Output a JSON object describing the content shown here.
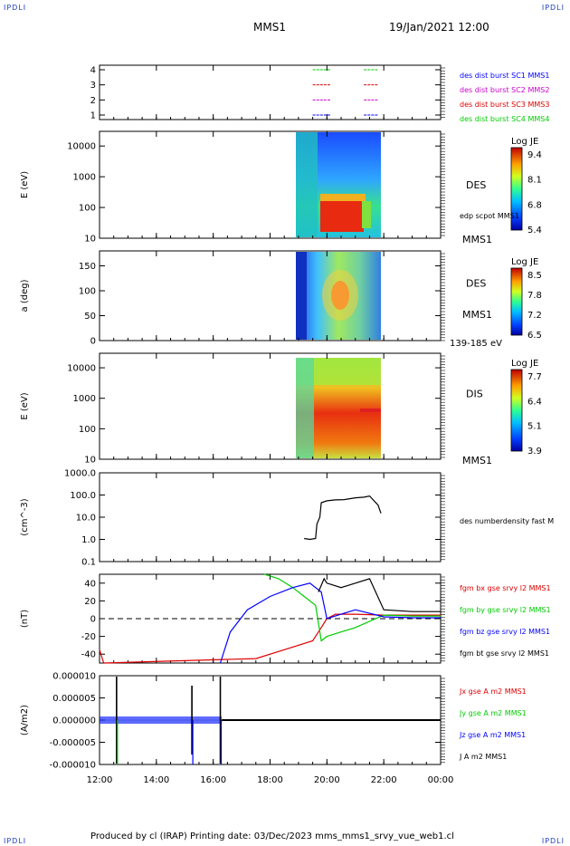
{
  "corner_tag": "IPDLI",
  "header": {
    "title": "MMS1",
    "date": "19/Jan/2021 12:00"
  },
  "footer": {
    "text": "Produced by cl (IRAP)    Printing date: 03/Dec/2023    mms_mms1_srvy_vue_web1.cl"
  },
  "colors": {
    "sc1": "#0000ff",
    "sc2": "#cc00cc",
    "sc3": "#dd0000",
    "sc4": "#00cc00",
    "black": "#000000"
  },
  "chart_data": {
    "type": "line",
    "x_axis": {
      "ticks": [
        "12:00",
        "14:00",
        "16:00",
        "18:00",
        "20:00",
        "22:00",
        "00:00"
      ],
      "range_hours": [
        12,
        24
      ]
    },
    "panels": [
      {
        "id": "coverage",
        "type": "scatter",
        "yticks": [
          "4",
          "3",
          "2",
          "1"
        ],
        "legend": [
          {
            "label": "des dist burst SC1 MMS1",
            "color": "#0000ff"
          },
          {
            "label": "des dist burst SC2 MMS2",
            "color": "#cc00cc"
          },
          {
            "label": "des dist burst SC3 MMS3",
            "color": "#dd0000"
          },
          {
            "label": "des dist burst SC4 MMS4",
            "color": "#00cc00"
          }
        ],
        "intervals_hours": [
          [
            19.5,
            20.1
          ],
          [
            21.3,
            21.8
          ]
        ]
      },
      {
        "id": "des_energy",
        "type": "heatmap",
        "ylabel": "E (eV)",
        "yticks": [
          "10000",
          "1000",
          "100",
          "10"
        ],
        "scale": "log",
        "ylim": [
          10,
          30000
        ],
        "data_interval_hours": [
          18.9,
          21.95
        ],
        "species": "DES",
        "sat": "MMS1",
        "overlay_label": "edp scpot MMS1",
        "colorbar": {
          "title": "Log JE",
          "ticks": [
            "9.4",
            "8.1",
            "6.8",
            "5.4"
          ]
        }
      },
      {
        "id": "des_pitch",
        "type": "heatmap",
        "ylabel": "a (deg)",
        "yticks": [
          "150",
          "100",
          "50",
          "0"
        ],
        "ylim": [
          0,
          180
        ],
        "data_interval_hours": [
          18.9,
          21.95
        ],
        "species": "DES",
        "sat": "MMS1",
        "energy_band": "139-185 eV",
        "colorbar": {
          "title": "Log JE",
          "ticks": [
            "8.5",
            "7.8",
            "7.2",
            "6.5"
          ]
        }
      },
      {
        "id": "dis_energy",
        "type": "heatmap",
        "ylabel": "E (eV)",
        "yticks": [
          "10000",
          "1000",
          "100",
          "10"
        ],
        "scale": "log",
        "ylim": [
          10,
          30000
        ],
        "data_interval_hours": [
          18.9,
          21.95
        ],
        "species": "DIS",
        "sat": "MMS1",
        "colorbar": {
          "title": "Log JE",
          "ticks": [
            "7.7",
            "6.4",
            "5.1",
            "3.9"
          ]
        }
      },
      {
        "id": "density",
        "type": "line",
        "ylabel": "(cm^-3)",
        "yticks": [
          "1000.0",
          "100.0",
          "10.0",
          "1.0",
          "0.1"
        ],
        "scale": "log",
        "ylim": [
          0.1,
          1000
        ],
        "series": [
          {
            "name": "des numberdensity fast M",
            "color": "#000000",
            "x": [
              19.2,
              19.4,
              19.6,
              19.65,
              19.75,
              19.8,
              20.0,
              20.3,
              20.6,
              21.0,
              21.3,
              21.5,
              21.8,
              21.9
            ],
            "y": [
              1.1,
              1.0,
              1.1,
              5,
              10,
              45,
              55,
              60,
              62,
              75,
              80,
              90,
              35,
              15
            ]
          }
        ]
      },
      {
        "id": "bfield",
        "type": "line",
        "ylabel": "(nT)",
        "yticks": [
          "40",
          "20",
          "0",
          "-20",
          "-40"
        ],
        "ylim": [
          -50,
          50
        ],
        "zero_line": true,
        "series": [
          {
            "name": "fgm bx gse srvy l2 MMS1",
            "color": "#dd0000",
            "x": [
              12.0,
              12.15,
              17.5,
              18.5,
              19.5,
              19.8,
              20.0,
              20.3,
              21.0,
              22.0,
              23.0,
              24.0
            ],
            "y": [
              -35,
              -50,
              -45,
              -35,
              -25,
              -10,
              0,
              5,
              5,
              4,
              4,
              4
            ]
          },
          {
            "name": "fgm by gse srvy l2 MMS1",
            "color": "#00cc00",
            "x": [
              17.8,
              18.3,
              18.8,
              19.2,
              19.6,
              19.8,
              20.0,
              20.5,
              21.0,
              22.0,
              23.0,
              24.0
            ],
            "y": [
              50,
              45,
              35,
              25,
              15,
              -25,
              -20,
              -15,
              -10,
              4,
              3,
              3
            ]
          },
          {
            "name": "fgm bz gse srvy l2 MMS1",
            "color": "#0000ff",
            "x": [
              16.25,
              16.6,
              17.2,
              18.0,
              18.8,
              19.4,
              19.8,
              20.0,
              20.5,
              21.0,
              22.0,
              23.0,
              24.0
            ],
            "y": [
              -50,
              -15,
              10,
              25,
              35,
              40,
              30,
              0,
              5,
              10,
              2,
              1,
              1
            ]
          },
          {
            "name": "fgm bt gse srvy l2 MMS1",
            "color": "#000000",
            "x": [
              19.7,
              19.9,
              20.0,
              20.5,
              21.0,
              21.5,
              22.0,
              23.0,
              24.0
            ],
            "y": [
              30,
              45,
              40,
              35,
              40,
              45,
              10,
              8,
              8
            ]
          }
        ]
      },
      {
        "id": "current",
        "type": "line",
        "ylabel": "(A/m2)",
        "yticks": [
          "0.000010",
          "0.000005",
          "0.000000",
          "-0.000005",
          "-0.000010"
        ],
        "ylim": [
          -1e-05,
          1e-05
        ],
        "series": [
          {
            "name": "Jx gse A m2 MMS1",
            "color": "#dd0000"
          },
          {
            "name": "Jy gse A m2 MMS1",
            "color": "#00cc00"
          },
          {
            "name": "Jz gse A m2 MMS1",
            "color": "#0000ff"
          },
          {
            "name": "J A m2 MMS1",
            "color": "#000000"
          }
        ],
        "features_hours": [
          12.6,
          15.25,
          16.25
        ]
      }
    ]
  }
}
